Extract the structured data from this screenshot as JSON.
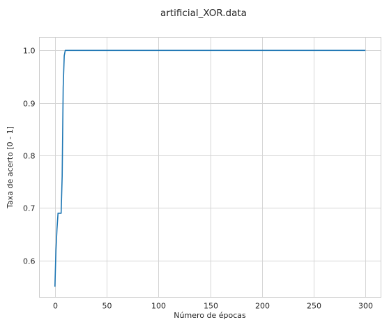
{
  "chart_data": {
    "type": "line",
    "title": "artificial_XOR.data",
    "xlabel": "Número de épocas",
    "ylabel": "Taxa de acerto [0 - 1]",
    "xlim": [
      -15,
      315
    ],
    "ylim": [
      0.53,
      1.025
    ],
    "x_ticks": [
      0,
      50,
      100,
      150,
      200,
      250,
      300
    ],
    "y_ticks": [
      0.6,
      0.7,
      0.8,
      0.9,
      1.0
    ],
    "x_tick_labels": [
      "0",
      "50",
      "100",
      "150",
      "200",
      "250",
      "300"
    ],
    "y_tick_labels": [
      "0.6",
      "0.7",
      "0.8",
      "0.9",
      "1.0"
    ],
    "grid": true,
    "line_color": "#1f77b4",
    "series": [
      {
        "x": [
          0,
          1,
          2,
          3,
          4,
          5,
          6,
          7,
          8,
          9,
          10,
          300
        ],
        "y": [
          0.55,
          0.62,
          0.66,
          0.69,
          0.69,
          0.69,
          0.69,
          0.76,
          0.93,
          0.99,
          1.0,
          1.0
        ]
      }
    ]
  }
}
